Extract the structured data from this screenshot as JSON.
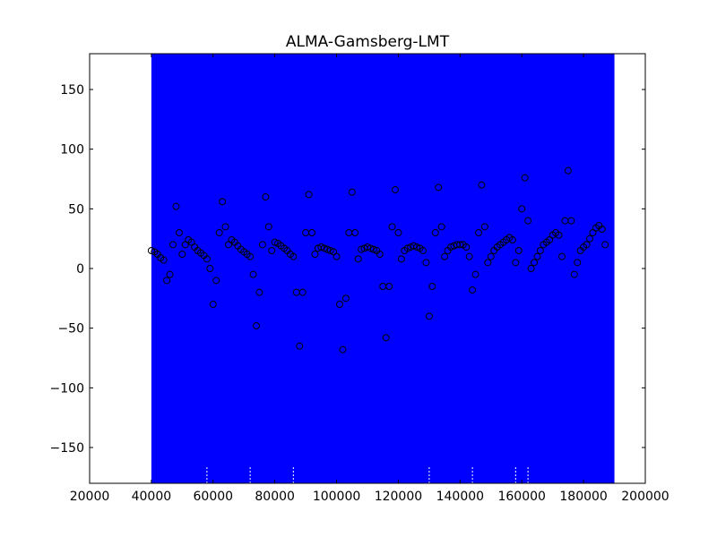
{
  "chart_data": {
    "type": "scatter",
    "title": "ALMA-Gamsberg-LMT",
    "xlabel": "",
    "ylabel": "",
    "xlim": [
      20000,
      200000
    ],
    "ylim": [
      -180,
      180
    ],
    "xticks": [
      20000,
      40000,
      60000,
      80000,
      100000,
      120000,
      140000,
      160000,
      180000,
      200000
    ],
    "xtick_labels": [
      "20000",
      "40000",
      "60000",
      "80000",
      "100000",
      "120000",
      "140000",
      "160000",
      "180000",
      "200000"
    ],
    "yticks": [
      -150,
      -100,
      -50,
      0,
      50,
      100,
      150
    ],
    "ytick_labels": [
      "−150",
      "−100",
      "−50",
      "0",
      "50",
      "100",
      "150"
    ],
    "grid": false,
    "background_band": {
      "x_range": [
        40000,
        190000
      ],
      "color": "#0000ff"
    },
    "series": [
      {
        "marker": "open-circle",
        "edge_color": "#000000",
        "points": [
          [
            40000,
            15
          ],
          [
            41000,
            14
          ],
          [
            42000,
            12
          ],
          [
            43000,
            9
          ],
          [
            44000,
            7
          ],
          [
            45000,
            -10
          ],
          [
            46000,
            -5
          ],
          [
            47000,
            20
          ],
          [
            48000,
            52
          ],
          [
            49000,
            30
          ],
          [
            50000,
            12
          ],
          [
            51000,
            20
          ],
          [
            52000,
            24
          ],
          [
            53000,
            22
          ],
          [
            54000,
            18
          ],
          [
            55000,
            15
          ],
          [
            56000,
            13
          ],
          [
            57000,
            11
          ],
          [
            58000,
            8
          ],
          [
            59000,
            0
          ],
          [
            60000,
            -30
          ],
          [
            61000,
            -10
          ],
          [
            62000,
            30
          ],
          [
            63000,
            56
          ],
          [
            64000,
            35
          ],
          [
            65000,
            20
          ],
          [
            66000,
            24
          ],
          [
            67000,
            22
          ],
          [
            68000,
            19
          ],
          [
            69000,
            16
          ],
          [
            70000,
            14
          ],
          [
            71000,
            12
          ],
          [
            72000,
            10
          ],
          [
            73000,
            -5
          ],
          [
            74000,
            -48
          ],
          [
            75000,
            -20
          ],
          [
            76000,
            20
          ],
          [
            77000,
            60
          ],
          [
            78000,
            35
          ],
          [
            79000,
            15
          ],
          [
            80000,
            22
          ],
          [
            81000,
            21
          ],
          [
            82000,
            19
          ],
          [
            83000,
            17
          ],
          [
            84000,
            15
          ],
          [
            85000,
            12
          ],
          [
            86000,
            10
          ],
          [
            87000,
            -20
          ],
          [
            88000,
            -65
          ],
          [
            89000,
            -20
          ],
          [
            90000,
            30
          ],
          [
            91000,
            62
          ],
          [
            92000,
            30
          ],
          [
            93000,
            12
          ],
          [
            94000,
            17
          ],
          [
            95000,
            18
          ],
          [
            96000,
            17
          ],
          [
            97000,
            16
          ],
          [
            98000,
            15
          ],
          [
            99000,
            14
          ],
          [
            100000,
            10
          ],
          [
            101000,
            -30
          ],
          [
            102000,
            -68
          ],
          [
            103000,
            -25
          ],
          [
            104000,
            30
          ],
          [
            105000,
            64
          ],
          [
            106000,
            30
          ],
          [
            107000,
            8
          ],
          [
            108000,
            16
          ],
          [
            109000,
            17
          ],
          [
            110000,
            18
          ],
          [
            111000,
            17
          ],
          [
            112000,
            16
          ],
          [
            113000,
            15
          ],
          [
            114000,
            12
          ],
          [
            115000,
            -15
          ],
          [
            116000,
            -58
          ],
          [
            117000,
            -15
          ],
          [
            118000,
            35
          ],
          [
            119000,
            66
          ],
          [
            120000,
            30
          ],
          [
            121000,
            8
          ],
          [
            122000,
            15
          ],
          [
            123000,
            17
          ],
          [
            124000,
            18
          ],
          [
            125000,
            19
          ],
          [
            126000,
            18
          ],
          [
            127000,
            17
          ],
          [
            128000,
            15
          ],
          [
            129000,
            5
          ],
          [
            130000,
            -40
          ],
          [
            131000,
            -15
          ],
          [
            132000,
            30
          ],
          [
            133000,
            68
          ],
          [
            134000,
            35
          ],
          [
            135000,
            10
          ],
          [
            136000,
            15
          ],
          [
            137000,
            18
          ],
          [
            138000,
            19
          ],
          [
            139000,
            20
          ],
          [
            140000,
            20
          ],
          [
            141000,
            20
          ],
          [
            142000,
            18
          ],
          [
            143000,
            10
          ],
          [
            144000,
            -18
          ],
          [
            145000,
            -5
          ],
          [
            146000,
            30
          ],
          [
            147000,
            70
          ],
          [
            148000,
            35
          ],
          [
            149000,
            5
          ],
          [
            150000,
            10
          ],
          [
            151000,
            15
          ],
          [
            152000,
            18
          ],
          [
            153000,
            20
          ],
          [
            154000,
            22
          ],
          [
            155000,
            24
          ],
          [
            156000,
            26
          ],
          [
            157000,
            24
          ],
          [
            158000,
            5
          ],
          [
            159000,
            15
          ],
          [
            160000,
            50
          ],
          [
            161000,
            76
          ],
          [
            162000,
            40
          ],
          [
            163000,
            0
          ],
          [
            164000,
            5
          ],
          [
            165000,
            10
          ],
          [
            166000,
            15
          ],
          [
            167000,
            20
          ],
          [
            168000,
            22
          ],
          [
            169000,
            24
          ],
          [
            170000,
            28
          ],
          [
            171000,
            30
          ],
          [
            172000,
            28
          ],
          [
            173000,
            10
          ],
          [
            174000,
            40
          ],
          [
            175000,
            82
          ],
          [
            176000,
            40
          ],
          [
            177000,
            -5
          ],
          [
            178000,
            5
          ],
          [
            179000,
            15
          ],
          [
            180000,
            18
          ],
          [
            181000,
            20
          ],
          [
            182000,
            25
          ],
          [
            183000,
            30
          ],
          [
            184000,
            34
          ],
          [
            185000,
            36
          ],
          [
            186000,
            33
          ],
          [
            187000,
            20
          ]
        ]
      }
    ]
  }
}
